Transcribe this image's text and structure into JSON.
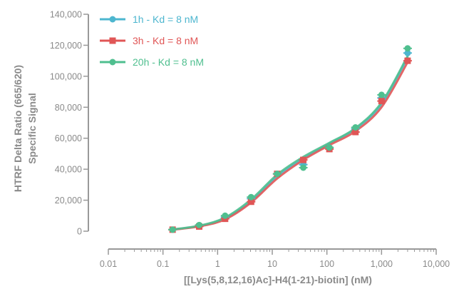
{
  "chart_data": {
    "type": "scatter",
    "xscale": "log",
    "xlim": [
      0.01,
      10000
    ],
    "ylim": [
      0,
      140000
    ],
    "grid": false,
    "legend_position": "top-left",
    "xlabel": "[[Lys(5,8,12,16)Ac]-H4(1-21)-biotin] (nM)",
    "ylabel_lines": [
      "HTRF Delta Ratio (665/620)",
      "Specific Signal"
    ],
    "xtick_labels": [
      "0.01",
      "0.1",
      "1",
      "10",
      "100",
      "1,000",
      "10,000"
    ],
    "xtick_values": [
      0.01,
      0.1,
      1,
      10,
      100,
      1000,
      10000
    ],
    "ytick_labels": [
      "0",
      "20,000",
      "40,000",
      "60,000",
      "80,000",
      "100,000",
      "120,000",
      "140,000"
    ],
    "ytick_values": [
      0,
      20000,
      40000,
      60000,
      80000,
      100000,
      120000,
      140000
    ],
    "series": [
      {
        "name": "1h - Kd = 8 nM",
        "color": "#4db6cf",
        "marker": "circle",
        "points": [
          {
            "x": 0.15,
            "y": 1000
          },
          {
            "x": 0.46,
            "y": 3500
          },
          {
            "x": 1.37,
            "y": 9000
          },
          {
            "x": 4.1,
            "y": 21000
          },
          {
            "x": 12.3,
            "y": 37000
          },
          {
            "x": 37,
            "y": 43000
          },
          {
            "x": 111,
            "y": 54000
          },
          {
            "x": 333,
            "y": 66000
          },
          {
            "x": 1000,
            "y": 86000
          },
          {
            "x": 3000,
            "y": 115000
          }
        ],
        "curve": [
          {
            "x": 0.15,
            "y": 1000
          },
          {
            "x": 0.5,
            "y": 3600
          },
          {
            "x": 1.4,
            "y": 8500
          },
          {
            "x": 4.1,
            "y": 19500
          },
          {
            "x": 12.3,
            "y": 35500
          },
          {
            "x": 37,
            "y": 47000
          },
          {
            "x": 111,
            "y": 56500
          },
          {
            "x": 333,
            "y": 66000
          },
          {
            "x": 1000,
            "y": 82000
          },
          {
            "x": 3000,
            "y": 112000
          }
        ]
      },
      {
        "name": "3h - Kd = 8 nM",
        "color": "#e05656",
        "marker": "square",
        "points": [
          {
            "x": 0.15,
            "y": 1000
          },
          {
            "x": 0.46,
            "y": 3000
          },
          {
            "x": 1.37,
            "y": 8000
          },
          {
            "x": 4.1,
            "y": 19000
          },
          {
            "x": 12.3,
            "y": 37000
          },
          {
            "x": 37,
            "y": 46000
          },
          {
            "x": 111,
            "y": 53000
          },
          {
            "x": 333,
            "y": 64000
          },
          {
            "x": 1000,
            "y": 84000
          },
          {
            "x": 3000,
            "y": 110000
          }
        ],
        "curve": [
          {
            "x": 0.15,
            "y": 900
          },
          {
            "x": 0.5,
            "y": 3300
          },
          {
            "x": 1.4,
            "y": 7800
          },
          {
            "x": 4.1,
            "y": 18500
          },
          {
            "x": 12.3,
            "y": 34000
          },
          {
            "x": 37,
            "y": 46000
          },
          {
            "x": 111,
            "y": 55500
          },
          {
            "x": 333,
            "y": 64500
          },
          {
            "x": 1000,
            "y": 80000
          },
          {
            "x": 3000,
            "y": 109000
          }
        ]
      },
      {
        "name": "20h - Kd = 8 nM",
        "color": "#4fbf8f",
        "marker": "circle",
        "points": [
          {
            "x": 0.15,
            "y": 1000
          },
          {
            "x": 0.46,
            "y": 4000
          },
          {
            "x": 1.37,
            "y": 10000
          },
          {
            "x": 4.1,
            "y": 22000
          },
          {
            "x": 12.3,
            "y": 37000
          },
          {
            "x": 37,
            "y": 41000
          },
          {
            "x": 111,
            "y": 54000
          },
          {
            "x": 333,
            "y": 67000
          },
          {
            "x": 1000,
            "y": 88000
          },
          {
            "x": 3000,
            "y": 118000
          }
        ],
        "curve": [
          {
            "x": 0.15,
            "y": 1100
          },
          {
            "x": 0.5,
            "y": 3800
          },
          {
            "x": 1.4,
            "y": 9000
          },
          {
            "x": 4.1,
            "y": 20500
          },
          {
            "x": 12.3,
            "y": 36500
          },
          {
            "x": 37,
            "y": 48000
          },
          {
            "x": 111,
            "y": 57000
          },
          {
            "x": 333,
            "y": 66500
          },
          {
            "x": 1000,
            "y": 83000
          },
          {
            "x": 3000,
            "y": 113000
          }
        ]
      }
    ]
  }
}
